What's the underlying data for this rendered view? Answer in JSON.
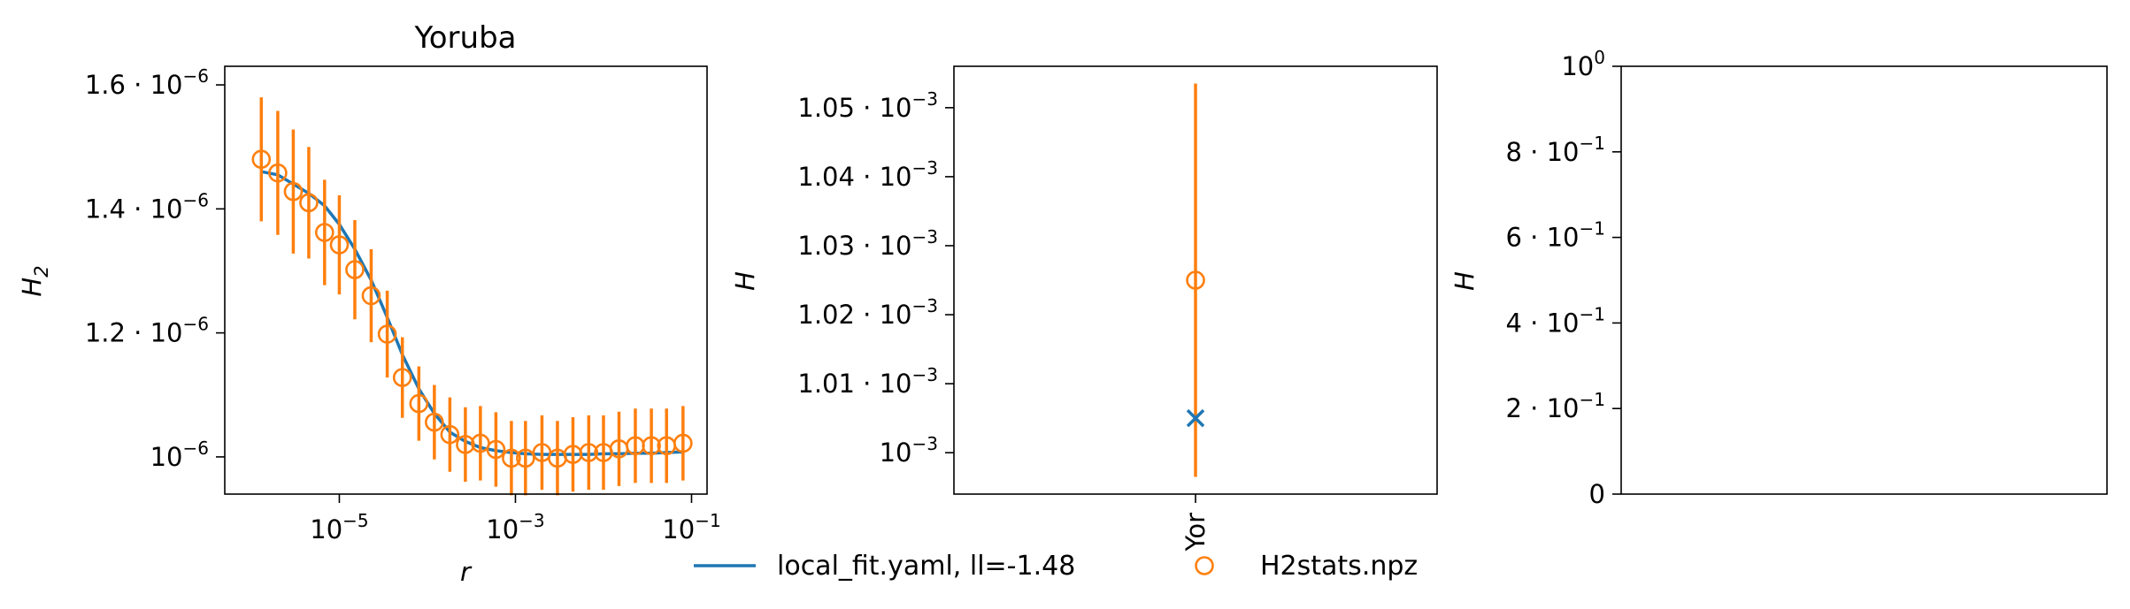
{
  "colors": {
    "fit": "#1f77b4",
    "data": "#ff7f0e",
    "axes": "#000000"
  },
  "chart_data": [
    {
      "type": "line",
      "title": "Yoruba",
      "xlabel": "r",
      "ylabel_base": "H",
      "ylabel_sub": "2",
      "xscale": "log",
      "xlim": [
        5e-07,
        0.15
      ],
      "ylim": [
        9.4e-07,
        1.63e-06
      ],
      "xticks": [
        {
          "value": 1e-05,
          "base": "10",
          "exp": "−5"
        },
        {
          "value": 0.001,
          "base": "10",
          "exp": "−3"
        },
        {
          "value": 0.1,
          "base": "10",
          "exp": "−1"
        }
      ],
      "yticks": [
        {
          "value": 1e-06,
          "mant": "",
          "base": "10",
          "exp": "−6"
        },
        {
          "value": 1.2e-06,
          "mant": "1.2 · ",
          "base": "10",
          "exp": "−6"
        },
        {
          "value": 1.4e-06,
          "mant": "1.4 · ",
          "base": "10",
          "exp": "−6"
        },
        {
          "value": 1.6e-06,
          "mant": "1.6 · ",
          "base": "10",
          "exp": "−6"
        }
      ],
      "series": [
        {
          "name": "local_fit.yaml, ll=-1.48",
          "kind": "line",
          "x": [
            1.3e-06,
            2e-06,
            3e-06,
            4.5e-06,
            6.8e-06,
            1e-05,
            1.5e-05,
            2.3e-05,
            3.5e-05,
            5.2e-05,
            8e-05,
            0.00012,
            0.00018,
            0.00027,
            0.0004,
            0.0006,
            0.0009,
            0.0013,
            0.002,
            0.003,
            0.0045,
            0.0068,
            0.01,
            0.015,
            0.023,
            0.035,
            0.052,
            0.08
          ],
          "y": [
            1.46e-06,
            1.455e-06,
            1.44e-06,
            1.425e-06,
            1.405e-06,
            1.375e-06,
            1.335e-06,
            1.285e-06,
            1.225e-06,
            1.165e-06,
            1.11e-06,
            1.07e-06,
            1.04e-06,
            1.025e-06,
            1.015e-06,
            1.01e-06,
            1.007e-06,
            1.005e-06,
            1.004e-06,
            1.004e-06,
            1.004e-06,
            1.004e-06,
            1.005e-06,
            1.005e-06,
            1.006e-06,
            1.006e-06,
            1.007e-06,
            1.008e-06
          ]
        },
        {
          "name": "H2stats.npz",
          "kind": "errorbar",
          "x": [
            1.3e-06,
            2e-06,
            3e-06,
            4.5e-06,
            6.8e-06,
            1e-05,
            1.5e-05,
            2.3e-05,
            3.5e-05,
            5.2e-05,
            8e-05,
            0.00012,
            0.00018,
            0.00027,
            0.0004,
            0.0006,
            0.0009,
            0.0013,
            0.002,
            0.003,
            0.0045,
            0.0068,
            0.01,
            0.015,
            0.023,
            0.035,
            0.052,
            0.08
          ],
          "y": [
            1.48e-06,
            1.458e-06,
            1.428e-06,
            1.41e-06,
            1.362e-06,
            1.342e-06,
            1.302e-06,
            1.26e-06,
            1.198e-06,
            1.128e-06,
            1.086e-06,
            1.056e-06,
            1.036e-06,
            1.02e-06,
            1.022e-06,
            1.012e-06,
            9.98e-07,
            9.98e-07,
            1.007e-06,
            9.98e-07,
            1.004e-06,
            1.007e-06,
            1.007e-06,
            1.013e-06,
            1.018e-06,
            1.018e-06,
            1.018e-06,
            1.022e-06
          ],
          "err": [
            1e-07,
            1e-07,
            1e-07,
            9e-08,
            8.5e-08,
            8e-08,
            8e-08,
            7.5e-08,
            7e-08,
            6.5e-08,
            6e-08,
            6e-08,
            6e-08,
            6e-08,
            6e-08,
            6e-08,
            6e-08,
            6e-08,
            6e-08,
            6e-08,
            6e-08,
            6e-08,
            6e-08,
            6e-08,
            6e-08,
            6e-08,
            6e-08,
            6e-08
          ]
        }
      ]
    },
    {
      "type": "scatter",
      "title": "",
      "ylabel": "H",
      "categories": [
        "Yor"
      ],
      "ylim": [
        0.000994,
        0.001056
      ],
      "yticks": [
        {
          "value": 0.001,
          "mant": "",
          "base": "10",
          "exp": "−3"
        },
        {
          "value": 0.00101,
          "mant": "1.01 · ",
          "base": "10",
          "exp": "−3"
        },
        {
          "value": 0.00102,
          "mant": "1.02 · ",
          "base": "10",
          "exp": "−3"
        },
        {
          "value": 0.00103,
          "mant": "1.03 · ",
          "base": "10",
          "exp": "−3"
        },
        {
          "value": 0.00104,
          "mant": "1.04 · ",
          "base": "10",
          "exp": "−3"
        },
        {
          "value": 0.00105,
          "mant": "1.05 · ",
          "base": "10",
          "exp": "−3"
        }
      ],
      "series": [
        {
          "name": "local_fit.yaml, ll=-1.48",
          "kind": "x-marker",
          "values": [
            0.001005
          ]
        },
        {
          "name": "H2stats.npz",
          "kind": "errorbar",
          "values": [
            0.001025
          ],
          "err": [
            0.0285
          ]
        }
      ]
    },
    {
      "type": "scatter",
      "title": "",
      "ylabel": "H",
      "ylim": [
        0,
        1
      ],
      "yticks": [
        {
          "value": 0,
          "mant": "0",
          "base": "",
          "exp": ""
        },
        {
          "value": 0.2,
          "mant": "2 · ",
          "base": "10",
          "exp": "−1"
        },
        {
          "value": 0.4,
          "mant": "4 · ",
          "base": "10",
          "exp": "−1"
        },
        {
          "value": 0.6,
          "mant": "6 · ",
          "base": "10",
          "exp": "−1"
        },
        {
          "value": 0.8,
          "mant": "8 · ",
          "base": "10",
          "exp": "−1"
        },
        {
          "value": 1,
          "mant": "",
          "base": "10",
          "exp": "0"
        }
      ],
      "series": []
    }
  ],
  "legend": {
    "placement": "bottom-center",
    "entries": [
      {
        "label": "local_fit.yaml, ll=-1.48",
        "marker": "line"
      },
      {
        "label": "H2stats.npz",
        "marker": "circle"
      }
    ]
  }
}
